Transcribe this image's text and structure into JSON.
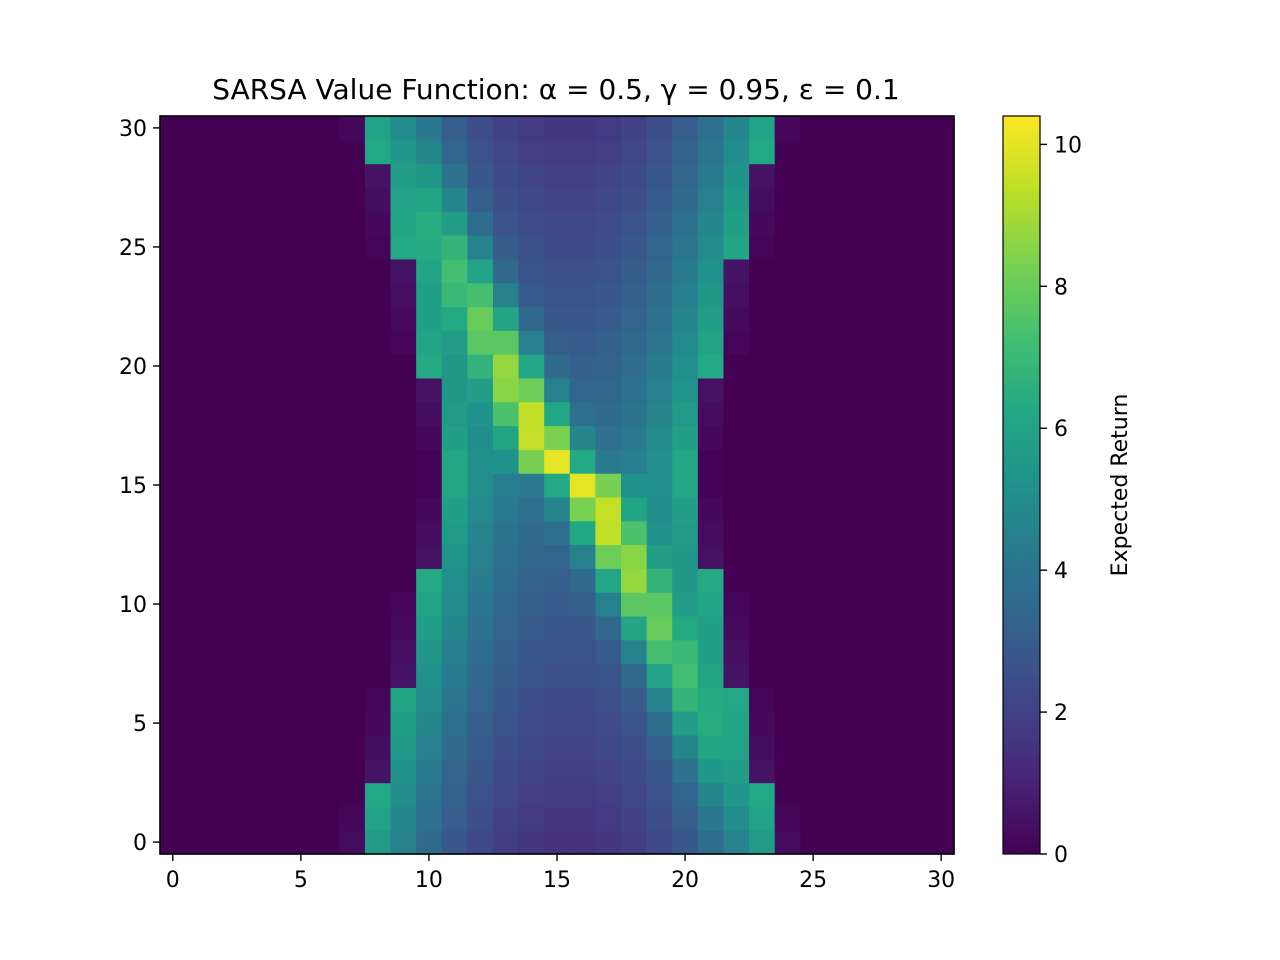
{
  "chart_data": {
    "type": "heatmap",
    "title": "SARSA Value Function: α = 0.5, γ = 0.95, ε = 0.1",
    "xlabel": "",
    "ylabel": "",
    "colorbar_label": "Expected Return",
    "colormap": "viridis",
    "grid": false,
    "origin": "lower",
    "nx": 31,
    "ny": 31,
    "xlim": [
      -0.5,
      30.5
    ],
    "ylim": [
      -0.5,
      30.5
    ],
    "vlim": [
      0,
      10.4
    ],
    "x_ticks": [
      0,
      5,
      10,
      15,
      20,
      25,
      30
    ],
    "y_ticks": [
      0,
      5,
      10,
      15,
      20,
      25,
      30
    ],
    "colorbar_ticks": [
      0,
      2,
      4,
      6,
      8,
      10
    ],
    "value_model": {
      "band_center": 15.5,
      "band_half_width_min": 4.5,
      "band_half_width_max": 8.0,
      "diagonal_peak": 10.4,
      "band_edge_value": 6.3,
      "band_interior_value": 1.5,
      "diagonal_width": 0.9
    }
  }
}
